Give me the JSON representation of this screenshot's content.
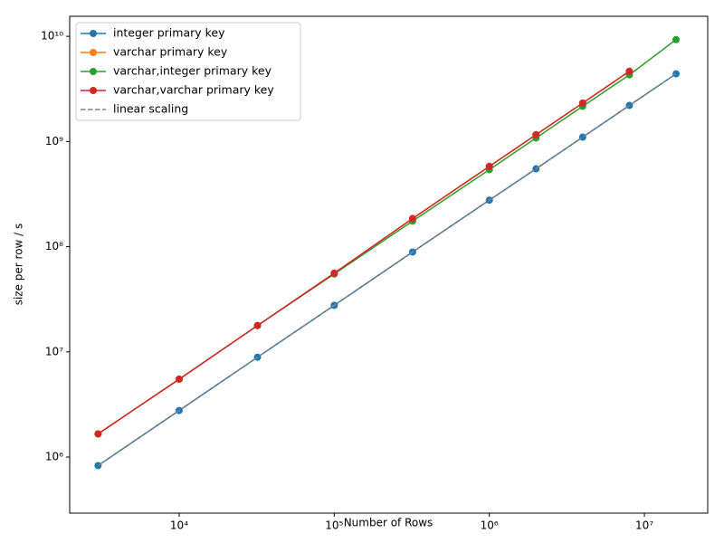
{
  "chart_data": {
    "type": "line",
    "xlabel": "Number of Rows",
    "ylabel": "size per row / s",
    "xscale": "log",
    "yscale": "log",
    "xlim": [
      1968,
      25600000
    ],
    "ylim": [
      293000,
      15500000000
    ],
    "xticks": [
      {
        "value": 10000,
        "label": "10⁴"
      },
      {
        "value": 100000,
        "label": "10⁵"
      },
      {
        "value": 1000000,
        "label": "10⁶"
      },
      {
        "value": 10000000,
        "label": "10⁷"
      }
    ],
    "yticks": [
      {
        "value": 1000000,
        "label": "10⁶"
      },
      {
        "value": 10000000,
        "label": "10⁷"
      },
      {
        "value": 100000000,
        "label": "10⁸"
      },
      {
        "value": 1000000000,
        "label": "10⁹"
      },
      {
        "value": 10000000000,
        "label": "10¹⁰"
      }
    ],
    "legend": "upper left",
    "x": [
      3000,
      10000,
      32000,
      100000,
      320000,
      1000000,
      2000000,
      4000000,
      8000000,
      16000000
    ],
    "series": [
      {
        "name": "integer primary key",
        "color": "#1f77b4",
        "marker": true,
        "dashed": false,
        "values": [
          830000,
          2770000,
          8900000,
          27700000,
          89000000,
          277000000,
          550000000,
          1100000000,
          2200000000,
          4400000000
        ]
      },
      {
        "name": "varchar primary key",
        "color": "#ff7f0e",
        "marker": true,
        "dashed": false,
        "values": [
          1660000,
          5500000,
          17800000,
          56000000,
          185000000,
          580000000,
          1160000000,
          2320000000,
          4650000000,
          null
        ]
      },
      {
        "name": "varchar,integer primary key",
        "color": "#2ca02c",
        "marker": true,
        "dashed": false,
        "values": [
          1660000,
          5500000,
          17800000,
          55000000,
          175000000,
          540000000,
          1080000000,
          2160000000,
          4300000000,
          9300000000
        ]
      },
      {
        "name": "varchar,varchar primary key",
        "color": "#d62728",
        "marker": true,
        "dashed": false,
        "values": [
          1660000,
          5500000,
          17800000,
          56000000,
          185000000,
          580000000,
          1160000000,
          2320000000,
          4650000000,
          null
        ]
      },
      {
        "name": "linear scaling",
        "color": "#808080",
        "marker": false,
        "dashed": true,
        "values": [
          830000,
          2770000,
          8900000,
          27700000,
          89000000,
          277000000,
          550000000,
          1100000000,
          2200000000,
          4400000000
        ]
      }
    ]
  }
}
